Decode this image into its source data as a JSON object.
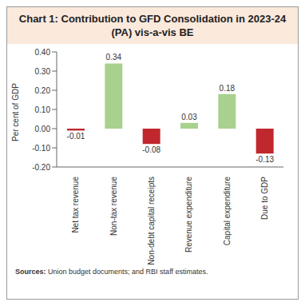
{
  "chart_data": {
    "type": "bar",
    "title": "Chart 1: Contribution to GFD Consolidation in 2023-24 (PA) vis-a-vis BE",
    "y_label": "Per cent of GDP",
    "categories": [
      "Net tax revenue",
      "Non-tax revenue",
      "Non-debt capital receipts",
      "Revenue expenditure",
      "Capital expenditure",
      "Due to GDP"
    ],
    "values": [
      -0.01,
      0.34,
      -0.08,
      0.03,
      0.18,
      -0.13
    ],
    "colors": [
      "#c0282d",
      "#a9d18e",
      "#c0282d",
      "#a9d18e",
      "#a9d18e",
      "#c0282d"
    ],
    "ylim": [
      -0.2,
      0.4
    ],
    "yticks": [
      {
        "value": -0.2,
        "label": "-0.20"
      },
      {
        "value": -0.1,
        "label": "-0.10"
      },
      {
        "value": 0,
        "label": "0.00"
      },
      {
        "value": 0.1,
        "label": "0.10"
      },
      {
        "value": 0.2,
        "label": "0.20"
      },
      {
        "value": 0.3,
        "label": "0.30"
      },
      {
        "value": 0.4,
        "label": "0.40"
      }
    ],
    "data_labels": true,
    "grid": false,
    "source_label": "Sources:",
    "source": "Union budget documents; and RBI staff estimates."
  }
}
